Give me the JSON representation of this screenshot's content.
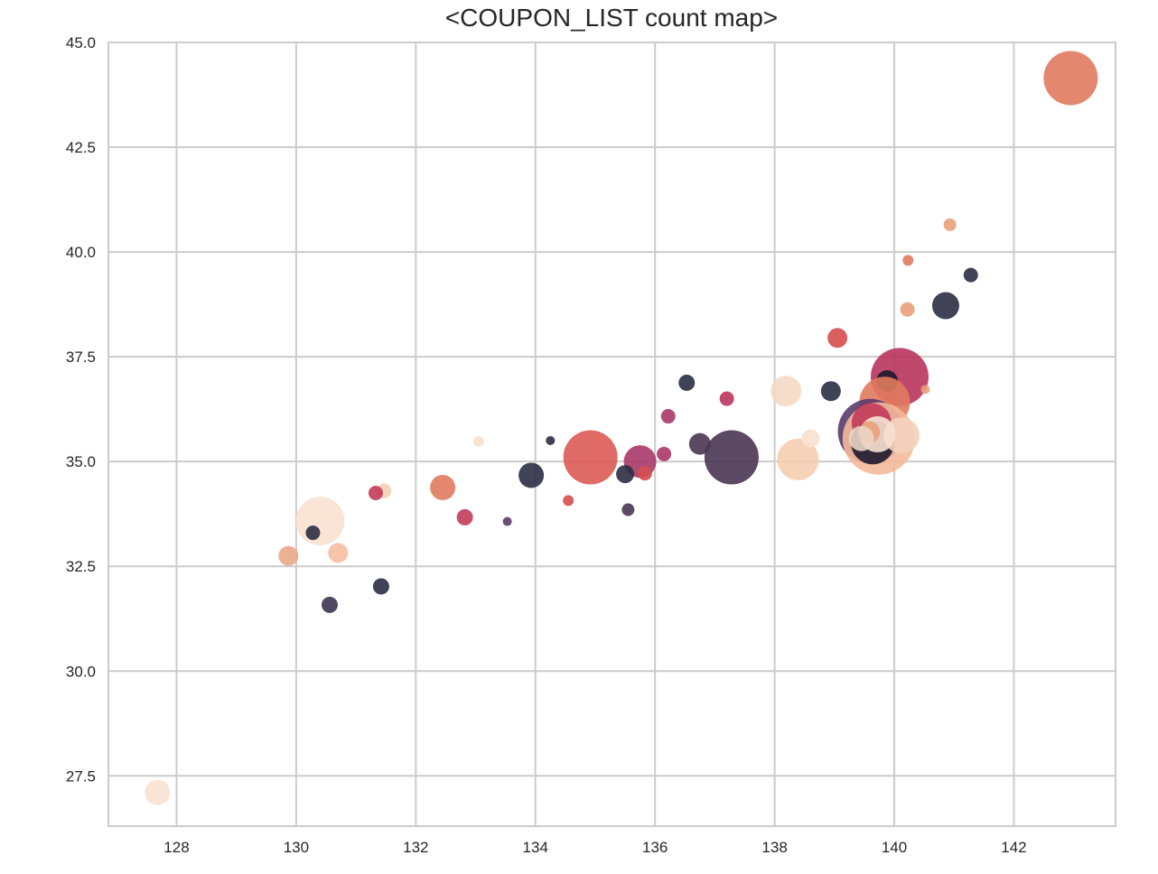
{
  "chart_data": {
    "type": "scatter",
    "title": "<COUPON_LIST count map>",
    "xlabel": "",
    "ylabel": "",
    "xlim": [
      126.86,
      143.7
    ],
    "ylim": [
      26.3,
      45.0
    ],
    "xticks": [
      128,
      130,
      132,
      134,
      136,
      138,
      140,
      142
    ],
    "yticks": [
      27.5,
      30.0,
      32.5,
      35.0,
      37.5,
      40.0,
      42.5,
      45.0
    ],
    "grid": true,
    "legend": "none",
    "points": [
      {
        "x": 142.95,
        "y": 44.15,
        "size": 30,
        "color": "#e07a5f"
      },
      {
        "x": 140.93,
        "y": 40.65,
        "size": 7,
        "color": "#e9a07a"
      },
      {
        "x": 141.28,
        "y": 39.45,
        "size": 8,
        "color": "#2b2d42"
      },
      {
        "x": 140.23,
        "y": 39.8,
        "size": 6,
        "color": "#e07a5f"
      },
      {
        "x": 140.86,
        "y": 38.72,
        "size": 15,
        "color": "#2b2d42"
      },
      {
        "x": 140.22,
        "y": 38.63,
        "size": 8,
        "color": "#e9a07a"
      },
      {
        "x": 139.05,
        "y": 37.95,
        "size": 11,
        "color": "#d64f4f"
      },
      {
        "x": 140.09,
        "y": 37.02,
        "size": 32,
        "color": "#b8345c"
      },
      {
        "x": 139.88,
        "y": 36.92,
        "size": 12,
        "color": "#1d1a2e"
      },
      {
        "x": 140.52,
        "y": 36.72,
        "size": 5,
        "color": "#e9a07a"
      },
      {
        "x": 138.19,
        "y": 36.68,
        "size": 17,
        "color": "#f5d9c3"
      },
      {
        "x": 138.94,
        "y": 36.68,
        "size": 11,
        "color": "#2b2d42"
      },
      {
        "x": 139.84,
        "y": 36.42,
        "size": 28,
        "color": "#e07a5f"
      },
      {
        "x": 139.6,
        "y": 35.72,
        "size": 36,
        "color": "#5a3b6b"
      },
      {
        "x": 139.74,
        "y": 35.55,
        "size": 40,
        "color": "#f4b99a"
      },
      {
        "x": 139.62,
        "y": 35.92,
        "size": 22,
        "color": "#c23b5a"
      },
      {
        "x": 139.64,
        "y": 35.45,
        "size": 24,
        "color": "#1d1a2e"
      },
      {
        "x": 140.12,
        "y": 35.62,
        "size": 20,
        "color": "#f4d2be"
      },
      {
        "x": 139.72,
        "y": 35.65,
        "size": 20,
        "color": "#f8e1d2"
      },
      {
        "x": 139.58,
        "y": 35.7,
        "size": 12,
        "color": "#e9a07a"
      },
      {
        "x": 139.45,
        "y": 35.55,
        "size": 14,
        "color": "#ead5c8"
      },
      {
        "x": 138.39,
        "y": 35.05,
        "size": 23,
        "color": "#f4cdb0"
      },
      {
        "x": 138.6,
        "y": 35.55,
        "size": 10,
        "color": "#f8e1d2"
      },
      {
        "x": 136.53,
        "y": 36.88,
        "size": 9,
        "color": "#2b2d42"
      },
      {
        "x": 137.2,
        "y": 36.5,
        "size": 8,
        "color": "#b8345c"
      },
      {
        "x": 136.22,
        "y": 36.08,
        "size": 8,
        "color": "#a8396a"
      },
      {
        "x": 136.75,
        "y": 35.42,
        "size": 12,
        "color": "#4a3552"
      },
      {
        "x": 136.15,
        "y": 35.18,
        "size": 8,
        "color": "#a8396a"
      },
      {
        "x": 137.28,
        "y": 35.1,
        "size": 30,
        "color": "#4a3552"
      },
      {
        "x": 135.75,
        "y": 35.0,
        "size": 18,
        "color": "#a8396a"
      },
      {
        "x": 135.83,
        "y": 34.72,
        "size": 8,
        "color": "#d64f4f"
      },
      {
        "x": 135.5,
        "y": 34.7,
        "size": 10,
        "color": "#2b2d42"
      },
      {
        "x": 134.92,
        "y": 35.1,
        "size": 30,
        "color": "#dc5a55"
      },
      {
        "x": 135.55,
        "y": 33.85,
        "size": 7,
        "color": "#4a3552"
      },
      {
        "x": 134.25,
        "y": 35.5,
        "size": 5,
        "color": "#2b2d42"
      },
      {
        "x": 133.93,
        "y": 34.67,
        "size": 14,
        "color": "#2b2d42"
      },
      {
        "x": 134.55,
        "y": 34.07,
        "size": 6,
        "color": "#d64f4f"
      },
      {
        "x": 133.53,
        "y": 33.57,
        "size": 5,
        "color": "#5a3b6b"
      },
      {
        "x": 133.05,
        "y": 35.48,
        "size": 6,
        "color": "#f8e1d2"
      },
      {
        "x": 132.45,
        "y": 34.38,
        "size": 14,
        "color": "#e07a5f"
      },
      {
        "x": 132.82,
        "y": 33.67,
        "size": 9,
        "color": "#c23b5a"
      },
      {
        "x": 131.47,
        "y": 34.3,
        "size": 8,
        "color": "#f4cdb0"
      },
      {
        "x": 131.33,
        "y": 34.25,
        "size": 8,
        "color": "#c23b5a"
      },
      {
        "x": 130.4,
        "y": 33.58,
        "size": 27,
        "color": "#f8e1d2"
      },
      {
        "x": 130.28,
        "y": 33.3,
        "size": 8,
        "color": "#2b2d42"
      },
      {
        "x": 129.87,
        "y": 32.75,
        "size": 11,
        "color": "#eaa88a"
      },
      {
        "x": 130.7,
        "y": 32.82,
        "size": 11,
        "color": "#f4bea0"
      },
      {
        "x": 131.42,
        "y": 32.02,
        "size": 9,
        "color": "#2b2d42"
      },
      {
        "x": 130.56,
        "y": 31.58,
        "size": 9,
        "color": "#3d3550"
      },
      {
        "x": 127.68,
        "y": 27.1,
        "size": 14,
        "color": "#f8e1d2"
      }
    ]
  }
}
